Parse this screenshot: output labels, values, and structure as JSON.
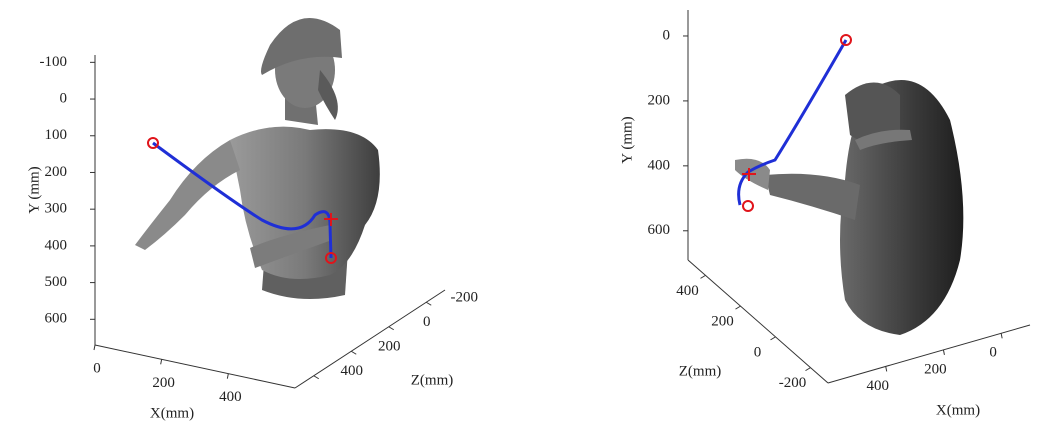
{
  "chart_data": [
    {
      "type": "line3d",
      "xlabel": "X(mm)",
      "ylabel": "Y (mm)",
      "zlabel": "Z(mm)",
      "xlim": [
        0,
        600
      ],
      "xticks": [
        0,
        200,
        400
      ],
      "ylim": [
        -120,
        670
      ],
      "yticks": [
        -100,
        0,
        100,
        200,
        300,
        400,
        500,
        600
      ],
      "zlim": [
        500,
        -300
      ],
      "zticks": [
        400,
        200,
        0,
        -200
      ]
    },
    {
      "type": "line3d",
      "xlabel": "X(mm)",
      "ylabel": "Y (mm)",
      "zlabel": "Z(mm)",
      "xlim": [
        600,
        -100
      ],
      "xticks": [
        400,
        200,
        0
      ],
      "ylim": [
        -80,
        690
      ],
      "yticks": [
        0,
        200,
        400,
        600
      ],
      "zlim": [
        500,
        -300
      ],
      "zticks": [
        400,
        200,
        0,
        -200
      ]
    }
  ]
}
